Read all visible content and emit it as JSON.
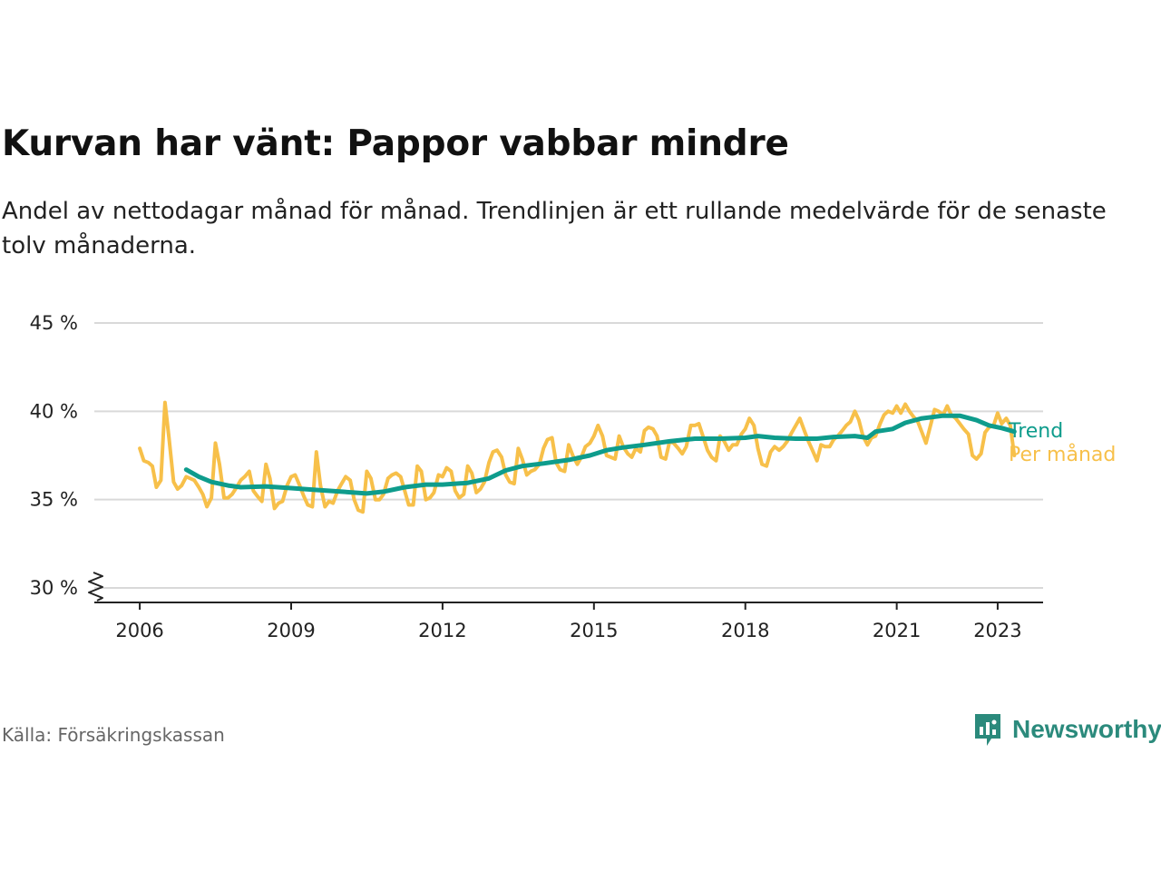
{
  "title": "Kurvan har vänt: Pappor vabbar mindre",
  "subtitle": "Andel av nettodagar månad för månad. Trendlinjen är ett rullande medelvärde för de senaste tolv månaderna.",
  "source": "Källa: Försäkringskassan",
  "brand": "Newsworthy",
  "colors": {
    "trend": "#0e9c8c",
    "monthly": "#f7c04a",
    "brand": "#2b8a7c",
    "grid": "#d9d9d9"
  },
  "chart_data": {
    "type": "line",
    "y_ticks": [
      {
        "value": 30,
        "label": "30 %"
      },
      {
        "value": 35,
        "label": "35 %"
      },
      {
        "value": 40,
        "label": "40 %"
      },
      {
        "value": 45,
        "label": "45 %"
      }
    ],
    "ylim": [
      30,
      45
    ],
    "y_axis_break": true,
    "x_ticks": [
      {
        "value": 2006,
        "label": "2006"
      },
      {
        "value": 2009,
        "label": "2009"
      },
      {
        "value": 2012,
        "label": "2012"
      },
      {
        "value": 2015,
        "label": "2015"
      },
      {
        "value": 2018,
        "label": "2018"
      },
      {
        "value": 2021,
        "label": "2021"
      },
      {
        "value": 2023,
        "label": "2023"
      }
    ],
    "xlim": [
      2005.1,
      2023.9
    ],
    "grid": true,
    "series": [
      {
        "name": "Per månad",
        "points": [
          [
            2006.0,
            37.9
          ],
          [
            2006.08,
            37.2
          ],
          [
            2006.17,
            37.1
          ],
          [
            2006.25,
            36.9
          ],
          [
            2006.33,
            35.7
          ],
          [
            2006.42,
            36.1
          ],
          [
            2006.5,
            40.5
          ],
          [
            2006.58,
            38.5
          ],
          [
            2006.67,
            36.0
          ],
          [
            2006.75,
            35.6
          ],
          [
            2006.83,
            35.8
          ],
          [
            2006.92,
            36.3
          ],
          [
            2007.0,
            36.2
          ],
          [
            2007.08,
            36.1
          ],
          [
            2007.17,
            35.7
          ],
          [
            2007.25,
            35.3
          ],
          [
            2007.33,
            34.6
          ],
          [
            2007.42,
            35.1
          ],
          [
            2007.5,
            38.2
          ],
          [
            2007.58,
            37.0
          ],
          [
            2007.67,
            35.1
          ],
          [
            2007.75,
            35.1
          ],
          [
            2007.83,
            35.3
          ],
          [
            2007.92,
            35.7
          ],
          [
            2008.0,
            36.1
          ],
          [
            2008.08,
            36.3
          ],
          [
            2008.17,
            36.6
          ],
          [
            2008.25,
            35.5
          ],
          [
            2008.33,
            35.2
          ],
          [
            2008.42,
            34.9
          ],
          [
            2008.5,
            37.0
          ],
          [
            2008.58,
            36.2
          ],
          [
            2008.67,
            34.5
          ],
          [
            2008.75,
            34.8
          ],
          [
            2008.83,
            34.9
          ],
          [
            2008.92,
            35.8
          ],
          [
            2009.0,
            36.3
          ],
          [
            2009.08,
            36.4
          ],
          [
            2009.17,
            35.8
          ],
          [
            2009.25,
            35.2
          ],
          [
            2009.33,
            34.7
          ],
          [
            2009.42,
            34.6
          ],
          [
            2009.5,
            37.7
          ],
          [
            2009.58,
            35.8
          ],
          [
            2009.67,
            34.6
          ],
          [
            2009.75,
            34.9
          ],
          [
            2009.83,
            34.8
          ],
          [
            2009.92,
            35.5
          ],
          [
            2010.0,
            35.9
          ],
          [
            2010.08,
            36.3
          ],
          [
            2010.17,
            36.1
          ],
          [
            2010.25,
            35.0
          ],
          [
            2010.33,
            34.4
          ],
          [
            2010.42,
            34.3
          ],
          [
            2010.5,
            36.6
          ],
          [
            2010.58,
            36.2
          ],
          [
            2010.67,
            35.0
          ],
          [
            2010.75,
            35.0
          ],
          [
            2010.83,
            35.3
          ],
          [
            2010.92,
            36.2
          ],
          [
            2011.0,
            36.4
          ],
          [
            2011.08,
            36.5
          ],
          [
            2011.17,
            36.3
          ],
          [
            2011.25,
            35.5
          ],
          [
            2011.33,
            34.7
          ],
          [
            2011.42,
            34.7
          ],
          [
            2011.5,
            36.9
          ],
          [
            2011.58,
            36.6
          ],
          [
            2011.67,
            35.0
          ],
          [
            2011.75,
            35.1
          ],
          [
            2011.83,
            35.4
          ],
          [
            2011.92,
            36.4
          ],
          [
            2012.0,
            36.3
          ],
          [
            2012.08,
            36.8
          ],
          [
            2012.17,
            36.6
          ],
          [
            2012.25,
            35.5
          ],
          [
            2012.33,
            35.1
          ],
          [
            2012.42,
            35.3
          ],
          [
            2012.5,
            36.9
          ],
          [
            2012.58,
            36.5
          ],
          [
            2012.67,
            35.4
          ],
          [
            2012.75,
            35.6
          ],
          [
            2012.83,
            36.0
          ],
          [
            2012.92,
            37.1
          ],
          [
            2013.0,
            37.7
          ],
          [
            2013.08,
            37.8
          ],
          [
            2013.17,
            37.4
          ],
          [
            2013.25,
            36.4
          ],
          [
            2013.33,
            36.0
          ],
          [
            2013.42,
            35.9
          ],
          [
            2013.5,
            37.9
          ],
          [
            2013.58,
            37.3
          ],
          [
            2013.67,
            36.4
          ],
          [
            2013.75,
            36.6
          ],
          [
            2013.83,
            36.7
          ],
          [
            2013.92,
            37.0
          ],
          [
            2014.0,
            37.9
          ],
          [
            2014.08,
            38.4
          ],
          [
            2014.17,
            38.5
          ],
          [
            2014.25,
            37.1
          ],
          [
            2014.33,
            36.7
          ],
          [
            2014.42,
            36.6
          ],
          [
            2014.5,
            38.1
          ],
          [
            2014.58,
            37.5
          ],
          [
            2014.67,
            37.0
          ],
          [
            2014.75,
            37.4
          ],
          [
            2014.83,
            38.0
          ],
          [
            2014.92,
            38.2
          ],
          [
            2015.0,
            38.6
          ],
          [
            2015.08,
            39.2
          ],
          [
            2015.17,
            38.6
          ],
          [
            2015.25,
            37.5
          ],
          [
            2015.33,
            37.4
          ],
          [
            2015.42,
            37.3
          ],
          [
            2015.5,
            38.6
          ],
          [
            2015.58,
            38.0
          ],
          [
            2015.67,
            37.6
          ],
          [
            2015.75,
            37.4
          ],
          [
            2015.83,
            37.9
          ],
          [
            2015.92,
            37.7
          ],
          [
            2016.0,
            38.9
          ],
          [
            2016.08,
            39.1
          ],
          [
            2016.17,
            39.0
          ],
          [
            2016.25,
            38.6
          ],
          [
            2016.33,
            37.4
          ],
          [
            2016.42,
            37.3
          ],
          [
            2016.5,
            38.3
          ],
          [
            2016.58,
            38.2
          ],
          [
            2016.67,
            37.9
          ],
          [
            2016.75,
            37.6
          ],
          [
            2016.83,
            38.0
          ],
          [
            2016.92,
            39.2
          ],
          [
            2017.0,
            39.2
          ],
          [
            2017.08,
            39.3
          ],
          [
            2017.17,
            38.5
          ],
          [
            2017.25,
            37.8
          ],
          [
            2017.33,
            37.4
          ],
          [
            2017.42,
            37.2
          ],
          [
            2017.5,
            38.6
          ],
          [
            2017.58,
            38.3
          ],
          [
            2017.67,
            37.8
          ],
          [
            2017.75,
            38.1
          ],
          [
            2017.83,
            38.1
          ],
          [
            2017.92,
            38.7
          ],
          [
            2018.0,
            39.0
          ],
          [
            2018.08,
            39.6
          ],
          [
            2018.17,
            39.2
          ],
          [
            2018.25,
            37.9
          ],
          [
            2018.33,
            37.0
          ],
          [
            2018.42,
            36.9
          ],
          [
            2018.5,
            37.7
          ],
          [
            2018.58,
            38.0
          ],
          [
            2018.67,
            37.8
          ],
          [
            2018.75,
            38.0
          ],
          [
            2018.83,
            38.3
          ],
          [
            2018.92,
            38.8
          ],
          [
            2019.0,
            39.2
          ],
          [
            2019.08,
            39.6
          ],
          [
            2019.17,
            38.9
          ],
          [
            2019.25,
            38.3
          ],
          [
            2019.33,
            37.8
          ],
          [
            2019.42,
            37.2
          ],
          [
            2019.5,
            38.1
          ],
          [
            2019.58,
            38.0
          ],
          [
            2019.67,
            38.0
          ],
          [
            2019.75,
            38.4
          ],
          [
            2019.83,
            38.6
          ],
          [
            2019.92,
            38.9
          ],
          [
            2020.0,
            39.2
          ],
          [
            2020.08,
            39.4
          ],
          [
            2020.17,
            40.0
          ],
          [
            2020.25,
            39.5
          ],
          [
            2020.33,
            38.6
          ],
          [
            2020.42,
            38.1
          ],
          [
            2020.5,
            38.5
          ],
          [
            2020.58,
            38.6
          ],
          [
            2020.67,
            39.3
          ],
          [
            2020.75,
            39.8
          ],
          [
            2020.83,
            40.0
          ],
          [
            2020.92,
            39.9
          ],
          [
            2021.0,
            40.3
          ],
          [
            2021.08,
            39.9
          ],
          [
            2021.17,
            40.4
          ],
          [
            2021.25,
            40.0
          ],
          [
            2021.33,
            39.7
          ],
          [
            2021.42,
            39.4
          ],
          [
            2021.5,
            38.8
          ],
          [
            2021.58,
            38.2
          ],
          [
            2021.67,
            39.2
          ],
          [
            2021.75,
            40.1
          ],
          [
            2021.83,
            40.0
          ],
          [
            2021.92,
            39.8
          ],
          [
            2022.0,
            40.3
          ],
          [
            2022.08,
            39.8
          ],
          [
            2022.17,
            39.6
          ],
          [
            2022.25,
            39.3
          ],
          [
            2022.33,
            39.0
          ],
          [
            2022.42,
            38.7
          ],
          [
            2022.5,
            37.5
          ],
          [
            2022.58,
            37.3
          ],
          [
            2022.67,
            37.6
          ],
          [
            2022.75,
            38.8
          ],
          [
            2022.83,
            39.1
          ],
          [
            2022.92,
            39.2
          ],
          [
            2023.0,
            39.9
          ],
          [
            2023.08,
            39.3
          ],
          [
            2023.17,
            39.6
          ],
          [
            2023.25,
            39.2
          ],
          [
            2023.33,
            37.5
          ]
        ]
      },
      {
        "name": "Trend",
        "points": [
          [
            2006.92,
            36.7
          ],
          [
            2007.17,
            36.3
          ],
          [
            2007.42,
            36.0
          ],
          [
            2007.75,
            35.8
          ],
          [
            2008.0,
            35.7
          ],
          [
            2008.5,
            35.75
          ],
          [
            2009.0,
            35.65
          ],
          [
            2009.5,
            35.55
          ],
          [
            2010.0,
            35.45
          ],
          [
            2010.5,
            35.35
          ],
          [
            2010.83,
            35.45
          ],
          [
            2011.25,
            35.7
          ],
          [
            2011.67,
            35.85
          ],
          [
            2012.0,
            35.85
          ],
          [
            2012.5,
            35.95
          ],
          [
            2012.92,
            36.2
          ],
          [
            2013.25,
            36.65
          ],
          [
            2013.58,
            36.9
          ],
          [
            2014.0,
            37.05
          ],
          [
            2014.5,
            37.25
          ],
          [
            2014.92,
            37.5
          ],
          [
            2015.25,
            37.8
          ],
          [
            2015.58,
            37.95
          ],
          [
            2016.0,
            38.1
          ],
          [
            2016.5,
            38.3
          ],
          [
            2017.0,
            38.45
          ],
          [
            2017.5,
            38.45
          ],
          [
            2018.0,
            38.5
          ],
          [
            2018.25,
            38.6
          ],
          [
            2018.58,
            38.5
          ],
          [
            2019.0,
            38.45
          ],
          [
            2019.42,
            38.45
          ],
          [
            2019.75,
            38.55
          ],
          [
            2020.17,
            38.6
          ],
          [
            2020.42,
            38.5
          ],
          [
            2020.58,
            38.85
          ],
          [
            2020.92,
            39.0
          ],
          [
            2021.17,
            39.35
          ],
          [
            2021.5,
            39.6
          ],
          [
            2021.92,
            39.75
          ],
          [
            2022.25,
            39.75
          ],
          [
            2022.58,
            39.5
          ],
          [
            2022.83,
            39.2
          ],
          [
            2023.08,
            39.05
          ],
          [
            2023.33,
            38.85
          ]
        ]
      }
    ]
  }
}
